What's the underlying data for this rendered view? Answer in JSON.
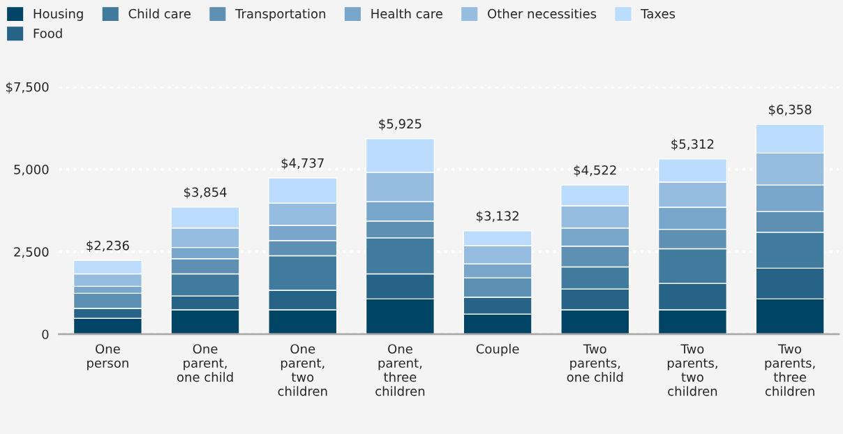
{
  "chart_data": {
    "type": "bar",
    "stacked": true,
    "categories": [
      "One\nperson",
      "One\nparent,\none child",
      "One\nparent,\ntwo\nchildren",
      "One\nparent,\nthree\nchildren",
      "Couple",
      "Two\nparents,\none child",
      "Two\nparents,\ntwo\nchildren",
      "Two\nparents,\nthree\nchildren"
    ],
    "series": [
      {
        "name": "Housing",
        "color": "#004466",
        "values": [
          480,
          740,
          740,
          1070,
          610,
          740,
          740,
          1070
        ]
      },
      {
        "name": "Food",
        "color": "#266386",
        "values": [
          300,
          420,
          590,
          760,
          510,
          630,
          800,
          930
        ]
      },
      {
        "name": "Child care",
        "color": "#407a9c",
        "values": [
          0,
          670,
          1050,
          1090,
          0,
          670,
          1050,
          1090
        ]
      },
      {
        "name": "Transportation",
        "color": "#5e90b4",
        "values": [
          460,
          460,
          460,
          510,
          590,
          630,
          590,
          630
        ]
      },
      {
        "name": "Health care",
        "color": "#79a7cb",
        "values": [
          210,
          340,
          460,
          590,
          420,
          550,
          670,
          800
        ]
      },
      {
        "name": "Other necessities",
        "color": "#96bde0",
        "values": [
          380,
          590,
          670,
          880,
          550,
          670,
          760,
          970
        ]
      },
      {
        "name": "Taxes",
        "color": "#bbdcfc",
        "values": [
          406,
          634,
          767,
          1025,
          452,
          632,
          702,
          868
        ]
      }
    ],
    "totals": [
      "$2,236",
      "$3,854",
      "$4,737",
      "$5,925",
      "$3,132",
      "$4,522",
      "$5,312",
      "$6,358"
    ],
    "ylim": [
      0,
      7500
    ],
    "yticks": [
      0,
      {
        "value": 2500,
        "label": "2,500"
      },
      {
        "value": 5000,
        "label": "5,000"
      },
      {
        "value": 7500,
        "label": "$7,500"
      }
    ],
    "grid": "y",
    "legend": "top left"
  }
}
